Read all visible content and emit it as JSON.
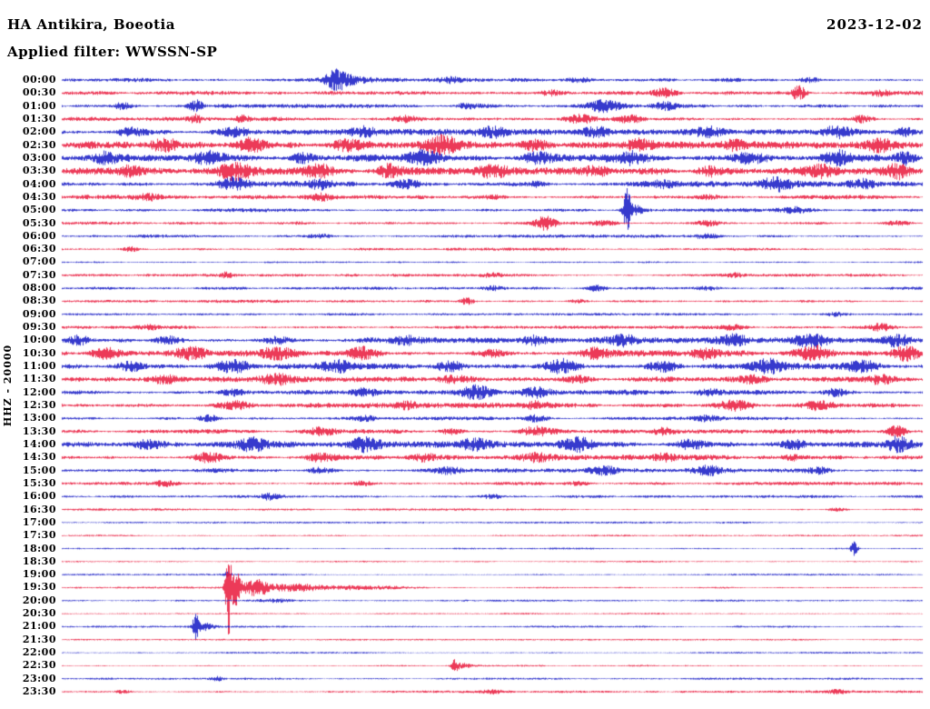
{
  "header": {
    "station_title": "HA Antikira, Boeotia",
    "date": "2023-12-02",
    "filter_label": "Applied filter: WWSSN-SP",
    "channel_scale": "HHZ - 20000"
  },
  "colors": {
    "blue": "#1216c4",
    "red": "#e8173a",
    "background": "#ffffff",
    "text": "#000000"
  },
  "chart_data": {
    "type": "line",
    "title": "Helicorder day plot, HA Antikira, Boeotia, 2023-12-02, channel HHZ, filter WWSSN-SP",
    "minutes_per_row": 30,
    "rows_count": 48,
    "note": "Each row is a 30-minute seismic trace. bursts = [position_fraction_along_row, peak_amplitude_px, gaussian_width_fraction]; noise = background noise amplitude in px.",
    "rows": [
      {
        "time": "00:00",
        "color": "blue",
        "noise": 2.0,
        "bursts": [
          [
            0.318,
            9,
            0.008
          ],
          [
            0.335,
            4,
            0.015
          ],
          [
            0.45,
            2.5,
            0.01
          ],
          [
            0.6,
            2.5,
            0.01
          ],
          [
            0.87,
            2.5,
            0.008
          ]
        ]
      },
      {
        "time": "00:30",
        "color": "red",
        "noise": 2.0,
        "bursts": [
          [
            0.57,
            3,
            0.01
          ],
          [
            0.7,
            5,
            0.01
          ],
          [
            0.855,
            9,
            0.006
          ],
          [
            0.95,
            3,
            0.008
          ]
        ]
      },
      {
        "time": "01:00",
        "color": "blue",
        "noise": 2.0,
        "bursts": [
          [
            0.07,
            4,
            0.006
          ],
          [
            0.155,
            7,
            0.006
          ],
          [
            0.47,
            3,
            0.008
          ],
          [
            0.63,
            6,
            0.014
          ],
          [
            0.7,
            4,
            0.01
          ]
        ]
      },
      {
        "time": "01:30",
        "color": "red",
        "noise": 2.0,
        "bursts": [
          [
            0.155,
            4,
            0.005
          ],
          [
            0.21,
            4,
            0.006
          ],
          [
            0.4,
            3,
            0.01
          ],
          [
            0.6,
            5,
            0.012
          ],
          [
            0.66,
            4,
            0.01
          ],
          [
            0.93,
            4,
            0.008
          ]
        ]
      },
      {
        "time": "02:00",
        "color": "blue",
        "noise": 3.0,
        "bursts": [
          [
            0.08,
            4,
            0.01
          ],
          [
            0.2,
            5,
            0.012
          ],
          [
            0.35,
            4,
            0.01
          ],
          [
            0.5,
            5,
            0.012
          ],
          [
            0.62,
            4,
            0.01
          ],
          [
            0.75,
            5,
            0.012
          ],
          [
            0.9,
            6,
            0.012
          ],
          [
            0.98,
            5,
            0.008
          ]
        ]
      },
      {
        "time": "02:30",
        "color": "red",
        "noise": 3.5,
        "bursts": [
          [
            0.12,
            5,
            0.012
          ],
          [
            0.22,
            8,
            0.012
          ],
          [
            0.33,
            6,
            0.012
          ],
          [
            0.44,
            9,
            0.015
          ],
          [
            0.55,
            6,
            0.012
          ],
          [
            0.67,
            5,
            0.01
          ],
          [
            0.78,
            4,
            0.01
          ],
          [
            0.95,
            6,
            0.01
          ]
        ]
      },
      {
        "time": "03:00",
        "color": "blue",
        "noise": 3.5,
        "bursts": [
          [
            0.05,
            5,
            0.01
          ],
          [
            0.17,
            6,
            0.012
          ],
          [
            0.28,
            5,
            0.01
          ],
          [
            0.42,
            9,
            0.015
          ],
          [
            0.55,
            5,
            0.012
          ],
          [
            0.66,
            7,
            0.012
          ],
          [
            0.8,
            6,
            0.012
          ],
          [
            0.9,
            7,
            0.012
          ],
          [
            0.98,
            7,
            0.008
          ]
        ]
      },
      {
        "time": "03:30",
        "color": "red",
        "noise": 3.5,
        "bursts": [
          [
            0.08,
            5,
            0.012
          ],
          [
            0.2,
            8,
            0.014
          ],
          [
            0.3,
            6,
            0.012
          ],
          [
            0.38,
            7,
            0.012
          ],
          [
            0.5,
            5,
            0.012
          ],
          [
            0.62,
            4,
            0.01
          ],
          [
            0.75,
            4,
            0.01
          ],
          [
            0.88,
            5,
            0.012
          ],
          [
            0.97,
            7,
            0.01
          ]
        ]
      },
      {
        "time": "04:00",
        "color": "blue",
        "noise": 2.8,
        "bursts": [
          [
            0.2,
            6,
            0.012
          ],
          [
            0.3,
            5,
            0.01
          ],
          [
            0.4,
            5,
            0.012
          ],
          [
            0.55,
            3,
            0.01
          ],
          [
            0.7,
            3,
            0.01
          ],
          [
            0.83,
            6,
            0.012
          ],
          [
            0.93,
            4,
            0.01
          ]
        ]
      },
      {
        "time": "04:30",
        "color": "red",
        "noise": 2.2,
        "bursts": [
          [
            0.1,
            3,
            0.01
          ],
          [
            0.3,
            3,
            0.01
          ],
          [
            0.5,
            2.5,
            0.01
          ],
          [
            0.75,
            2.5,
            0.01
          ]
        ]
      },
      {
        "time": "05:00",
        "color": "blue",
        "noise": 1.9,
        "bursts": [
          [
            0.656,
            22,
            0.0028
          ],
          [
            0.664,
            6,
            0.008
          ],
          [
            0.85,
            2.5,
            0.01
          ]
        ]
      },
      {
        "time": "05:30",
        "color": "red",
        "noise": 1.8,
        "bursts": [
          [
            0.56,
            8,
            0.01
          ],
          [
            0.63,
            3,
            0.01
          ],
          [
            0.75,
            3,
            0.012
          ],
          [
            0.97,
            3,
            0.01
          ]
        ]
      },
      {
        "time": "06:00",
        "color": "blue",
        "noise": 1.6,
        "bursts": [
          [
            0.3,
            2,
            0.01
          ],
          [
            0.75,
            2.5,
            0.01
          ]
        ]
      },
      {
        "time": "06:30",
        "color": "red",
        "noise": 1.4,
        "bursts": [
          [
            0.08,
            2.5,
            0.008
          ]
        ]
      },
      {
        "time": "07:00",
        "color": "blue",
        "noise": 1.1,
        "bursts": []
      },
      {
        "time": "07:30",
        "color": "red",
        "noise": 1.4,
        "bursts": [
          [
            0.19,
            2.5,
            0.006
          ],
          [
            0.5,
            2,
            0.008
          ],
          [
            0.78,
            2.5,
            0.008
          ]
        ]
      },
      {
        "time": "08:00",
        "color": "blue",
        "noise": 1.5,
        "bursts": [
          [
            0.5,
            2.5,
            0.008
          ],
          [
            0.62,
            3.5,
            0.008
          ],
          [
            0.75,
            2,
            0.008
          ]
        ]
      },
      {
        "time": "08:30",
        "color": "red",
        "noise": 1.5,
        "bursts": [
          [
            0.47,
            3.5,
            0.006
          ],
          [
            0.6,
            2,
            0.008
          ]
        ]
      },
      {
        "time": "09:00",
        "color": "blue",
        "noise": 1.2,
        "bursts": [
          [
            0.9,
            2,
            0.01
          ]
        ]
      },
      {
        "time": "09:30",
        "color": "red",
        "noise": 1.6,
        "bursts": [
          [
            0.1,
            2.5,
            0.008
          ],
          [
            0.78,
            2.5,
            0.01
          ],
          [
            0.95,
            4,
            0.01
          ]
        ]
      },
      {
        "time": "10:00",
        "color": "blue",
        "noise": 2.8,
        "bursts": [
          [
            0.02,
            5,
            0.008
          ],
          [
            0.12,
            4,
            0.01
          ],
          [
            0.25,
            4,
            0.012
          ],
          [
            0.4,
            4,
            0.012
          ],
          [
            0.55,
            4,
            0.01
          ],
          [
            0.65,
            5,
            0.012
          ],
          [
            0.78,
            5,
            0.012
          ],
          [
            0.87,
            7,
            0.012
          ],
          [
            0.97,
            6,
            0.01
          ]
        ]
      },
      {
        "time": "10:30",
        "color": "red",
        "noise": 3.2,
        "bursts": [
          [
            0.05,
            6,
            0.012
          ],
          [
            0.15,
            5,
            0.012
          ],
          [
            0.25,
            7,
            0.014
          ],
          [
            0.35,
            5,
            0.012
          ],
          [
            0.5,
            4,
            0.012
          ],
          [
            0.62,
            5,
            0.012
          ],
          [
            0.75,
            5,
            0.012
          ],
          [
            0.87,
            8,
            0.014
          ],
          [
            0.98,
            7,
            0.01
          ]
        ]
      },
      {
        "time": "11:00",
        "color": "blue",
        "noise": 3.2,
        "bursts": [
          [
            0.08,
            5,
            0.012
          ],
          [
            0.2,
            7,
            0.014
          ],
          [
            0.32,
            5,
            0.012
          ],
          [
            0.45,
            5,
            0.012
          ],
          [
            0.58,
            7,
            0.014
          ],
          [
            0.7,
            6,
            0.012
          ],
          [
            0.82,
            6,
            0.012
          ],
          [
            0.93,
            5,
            0.012
          ]
        ]
      },
      {
        "time": "11:30",
        "color": "red",
        "noise": 2.6,
        "bursts": [
          [
            0.12,
            4,
            0.012
          ],
          [
            0.25,
            5,
            0.012
          ],
          [
            0.45,
            4,
            0.012
          ],
          [
            0.6,
            4,
            0.012
          ],
          [
            0.8,
            5,
            0.012
          ],
          [
            0.95,
            4,
            0.01
          ]
        ]
      },
      {
        "time": "12:00",
        "color": "blue",
        "noise": 2.6,
        "bursts": [
          [
            0.2,
            3,
            0.01
          ],
          [
            0.35,
            3,
            0.01
          ],
          [
            0.48,
            7,
            0.012
          ],
          [
            0.55,
            5,
            0.012
          ],
          [
            0.75,
            3,
            0.01
          ],
          [
            0.9,
            4,
            0.01
          ]
        ]
      },
      {
        "time": "12:30",
        "color": "red",
        "noise": 2.6,
        "bursts": [
          [
            0.2,
            4,
            0.012
          ],
          [
            0.4,
            3,
            0.01
          ],
          [
            0.55,
            3,
            0.01
          ],
          [
            0.78,
            6,
            0.014
          ],
          [
            0.88,
            5,
            0.012
          ]
        ]
      },
      {
        "time": "13:00",
        "color": "blue",
        "noise": 1.8,
        "bursts": [
          [
            0.17,
            3.5,
            0.008
          ],
          [
            0.35,
            2.5,
            0.01
          ],
          [
            0.55,
            4,
            0.01
          ],
          [
            0.75,
            2.5,
            0.01
          ]
        ]
      },
      {
        "time": "13:30",
        "color": "red",
        "noise": 2.2,
        "bursts": [
          [
            0.3,
            3.5,
            0.01
          ],
          [
            0.45,
            3,
            0.01
          ],
          [
            0.55,
            5,
            0.012
          ],
          [
            0.7,
            3.5,
            0.01
          ],
          [
            0.97,
            6,
            0.008
          ]
        ]
      },
      {
        "time": "14:00",
        "color": "blue",
        "noise": 3.0,
        "bursts": [
          [
            0.1,
            4,
            0.012
          ],
          [
            0.22,
            6,
            0.012
          ],
          [
            0.35,
            6,
            0.013
          ],
          [
            0.48,
            5,
            0.012
          ],
          [
            0.6,
            6,
            0.013
          ],
          [
            0.73,
            5,
            0.012
          ],
          [
            0.85,
            4,
            0.012
          ],
          [
            0.97,
            7,
            0.01
          ]
        ]
      },
      {
        "time": "14:30",
        "color": "red",
        "noise": 2.6,
        "bursts": [
          [
            0.17,
            6,
            0.012
          ],
          [
            0.3,
            4,
            0.012
          ],
          [
            0.42,
            4,
            0.012
          ],
          [
            0.55,
            4,
            0.012
          ],
          [
            0.7,
            3,
            0.01
          ],
          [
            0.85,
            3,
            0.01
          ]
        ]
      },
      {
        "time": "15:00",
        "color": "blue",
        "noise": 2.2,
        "bursts": [
          [
            0.3,
            3,
            0.01
          ],
          [
            0.45,
            3,
            0.01
          ],
          [
            0.63,
            5,
            0.012
          ],
          [
            0.75,
            5,
            0.012
          ],
          [
            0.88,
            3,
            0.01
          ]
        ]
      },
      {
        "time": "15:30",
        "color": "red",
        "noise": 1.7,
        "bursts": [
          [
            0.12,
            2.5,
            0.008
          ],
          [
            0.35,
            2.5,
            0.01
          ],
          [
            0.6,
            2,
            0.01
          ]
        ]
      },
      {
        "time": "16:00",
        "color": "blue",
        "noise": 1.4,
        "bursts": [
          [
            0.24,
            3.5,
            0.008
          ],
          [
            0.5,
            2,
            0.01
          ]
        ]
      },
      {
        "time": "16:30",
        "color": "red",
        "noise": 1.1,
        "bursts": [
          [
            0.9,
            1.8,
            0.008
          ]
        ]
      },
      {
        "time": "17:00",
        "color": "blue",
        "noise": 0.9,
        "bursts": []
      },
      {
        "time": "17:30",
        "color": "red",
        "noise": 0.85,
        "bursts": []
      },
      {
        "time": "18:00",
        "color": "blue",
        "noise": 0.9,
        "bursts": [
          [
            0.92,
            8,
            0.0028
          ]
        ]
      },
      {
        "time": "18:30",
        "color": "red",
        "noise": 0.85,
        "bursts": []
      },
      {
        "time": "19:00",
        "color": "blue",
        "noise": 0.9,
        "bursts": [
          [
            0.193,
            4,
            0.0025
          ]
        ]
      },
      {
        "time": "19:30",
        "color": "red",
        "noise": 0.85,
        "bursts": [
          [
            0.193,
            45,
            0.0022
          ],
          [
            0.2,
            20,
            0.005
          ],
          [
            0.225,
            9,
            0.012
          ],
          [
            0.27,
            4,
            0.02
          ],
          [
            0.34,
            2.2,
            0.035
          ]
        ]
      },
      {
        "time": "20:00",
        "color": "blue",
        "noise": 0.95,
        "bursts": [
          [
            0.25,
            1.5,
            0.02
          ]
        ]
      },
      {
        "time": "20:30",
        "color": "red",
        "noise": 0.8,
        "bursts": []
      },
      {
        "time": "21:00",
        "color": "blue",
        "noise": 0.95,
        "bursts": [
          [
            0.155,
            13,
            0.0025
          ],
          [
            0.165,
            4,
            0.008
          ]
        ]
      },
      {
        "time": "21:30",
        "color": "red",
        "noise": 0.8,
        "bursts": []
      },
      {
        "time": "22:00",
        "color": "blue",
        "noise": 0.85,
        "bursts": []
      },
      {
        "time": "22:30",
        "color": "red",
        "noise": 0.85,
        "bursts": [
          [
            0.456,
            7,
            0.0025
          ],
          [
            0.465,
            2.5,
            0.007
          ]
        ]
      },
      {
        "time": "23:00",
        "color": "blue",
        "noise": 1.0,
        "bursts": [
          [
            0.18,
            2.5,
            0.005
          ]
        ]
      },
      {
        "time": "23:30",
        "color": "red",
        "noise": 1.2,
        "bursts": [
          [
            0.07,
            1.8,
            0.008
          ],
          [
            0.5,
            1.8,
            0.008
          ],
          [
            0.9,
            1.8,
            0.008
          ]
        ]
      }
    ]
  }
}
